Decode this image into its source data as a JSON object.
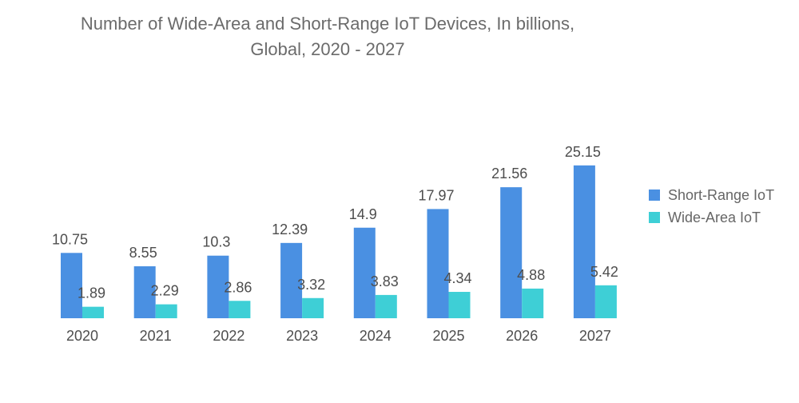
{
  "title_line1": "Number of Wide-Area and Short-Range IoT Devices, In billions,",
  "title_line2": "Global, 2020 - 2027",
  "chart_data": {
    "type": "bar",
    "categories": [
      "2020",
      "2021",
      "2022",
      "2023",
      "2024",
      "2025",
      "2026",
      "2027"
    ],
    "series": [
      {
        "name": "Short-Range IoT",
        "color": "#4a90e2",
        "values": [
          10.75,
          8.55,
          10.3,
          12.39,
          14.9,
          17.97,
          21.56,
          25.15
        ],
        "labels": [
          "10.75",
          "8.55",
          "10.3",
          "12.39",
          "14.9",
          "17.97",
          "21.56",
          "25.15"
        ]
      },
      {
        "name": "Wide-Area IoT",
        "color": "#3ecfd6",
        "values": [
          1.89,
          2.29,
          2.86,
          3.32,
          3.83,
          4.34,
          4.88,
          5.42
        ],
        "labels": [
          "1.89",
          "2.29",
          "2.86",
          "3.32",
          "3.83",
          "4.34",
          "4.88",
          "5.42"
        ]
      }
    ],
    "legend_position": "right",
    "grid": false,
    "xlabel": "",
    "ylabel": ""
  }
}
